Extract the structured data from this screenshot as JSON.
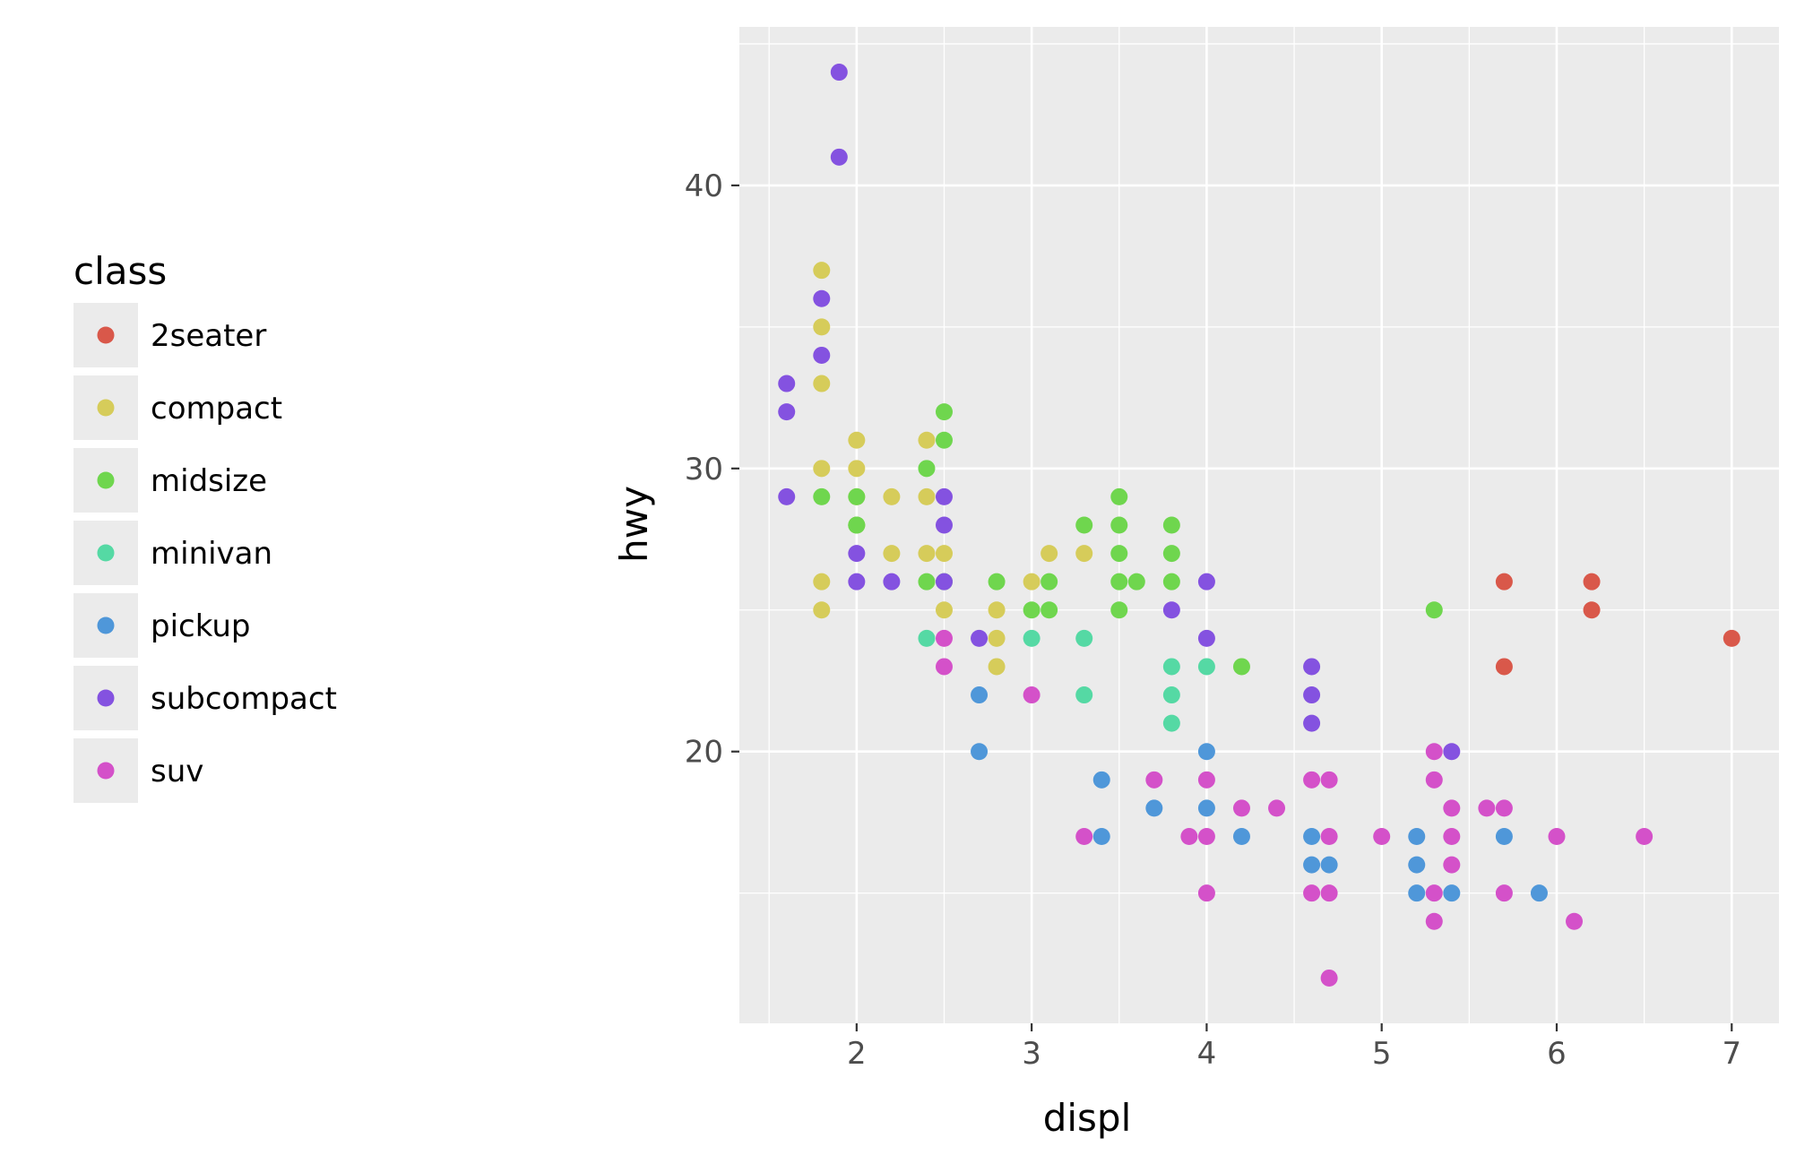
{
  "chart_data": {
    "type": "scatter",
    "title": "",
    "xlabel": "displ",
    "ylabel": "hwy",
    "xlim": [
      1.33,
      7.27
    ],
    "ylim": [
      10.4,
      45.6
    ],
    "x_ticks": [
      2,
      3,
      4,
      5,
      6,
      7
    ],
    "y_ticks": [
      20,
      30,
      40
    ],
    "grid": true,
    "legend": {
      "title": "class",
      "placement": "left",
      "entries": [
        {
          "name": "2seater",
          "color": "#d9584a"
        },
        {
          "name": "compact",
          "color": "#d6cc5a"
        },
        {
          "name": "midsize",
          "color": "#6fd64e"
        },
        {
          "name": "minivan",
          "color": "#55d9a4"
        },
        {
          "name": "pickup",
          "color": "#4f97d9"
        },
        {
          "name": "subcompact",
          "color": "#8452e0"
        },
        {
          "name": "suv",
          "color": "#d451c9"
        }
      ]
    },
    "series": [
      {
        "name": "2seater",
        "points": [
          [
            5.7,
            26
          ],
          [
            5.7,
            23
          ],
          [
            6.2,
            26
          ],
          [
            6.2,
            25
          ],
          [
            7.0,
            24
          ]
        ]
      },
      {
        "name": "compact",
        "points": [
          [
            1.8,
            37
          ],
          [
            1.8,
            35
          ],
          [
            1.8,
            33
          ],
          [
            1.8,
            30
          ],
          [
            1.8,
            26
          ],
          [
            1.8,
            25
          ],
          [
            2.0,
            31
          ],
          [
            2.0,
            30
          ],
          [
            2.0,
            29
          ],
          [
            2.2,
            29
          ],
          [
            2.2,
            27
          ],
          [
            2.4,
            31
          ],
          [
            2.4,
            29
          ],
          [
            2.4,
            27
          ],
          [
            2.5,
            27
          ],
          [
            2.5,
            25
          ],
          [
            2.8,
            25
          ],
          [
            2.8,
            24
          ],
          [
            2.8,
            23
          ],
          [
            3.0,
            26
          ],
          [
            3.1,
            27
          ],
          [
            3.3,
            27
          ],
          [
            2.0,
            28
          ]
        ]
      },
      {
        "name": "midsize",
        "points": [
          [
            1.8,
            29
          ],
          [
            2.0,
            29
          ],
          [
            2.0,
            28
          ],
          [
            2.4,
            30
          ],
          [
            2.4,
            26
          ],
          [
            2.5,
            32
          ],
          [
            2.5,
            31
          ],
          [
            2.5,
            26
          ],
          [
            2.8,
            26
          ],
          [
            3.0,
            25
          ],
          [
            3.1,
            26
          ],
          [
            3.1,
            25
          ],
          [
            3.3,
            28
          ],
          [
            3.5,
            29
          ],
          [
            3.5,
            28
          ],
          [
            3.5,
            27
          ],
          [
            3.5,
            26
          ],
          [
            3.5,
            25
          ],
          [
            3.6,
            26
          ],
          [
            3.8,
            28
          ],
          [
            3.8,
            27
          ],
          [
            3.8,
            26
          ],
          [
            4.2,
            23
          ],
          [
            5.3,
            25
          ],
          [
            2.0,
            28
          ]
        ]
      },
      {
        "name": "minivan",
        "points": [
          [
            2.4,
            24
          ],
          [
            3.0,
            24
          ],
          [
            3.3,
            24
          ],
          [
            3.3,
            22
          ],
          [
            3.8,
            23
          ],
          [
            3.8,
            22
          ],
          [
            3.8,
            21
          ],
          [
            4.0,
            23
          ]
        ]
      },
      {
        "name": "pickup",
        "points": [
          [
            2.7,
            22
          ],
          [
            2.7,
            20
          ],
          [
            3.4,
            19
          ],
          [
            3.4,
            17
          ],
          [
            3.7,
            18
          ],
          [
            4.0,
            20
          ],
          [
            4.0,
            18
          ],
          [
            4.2,
            17
          ],
          [
            4.6,
            17
          ],
          [
            4.6,
            16
          ],
          [
            4.7,
            16
          ],
          [
            5.2,
            17
          ],
          [
            5.2,
            16
          ],
          [
            5.2,
            15
          ],
          [
            5.4,
            15
          ],
          [
            5.7,
            17
          ],
          [
            5.9,
            15
          ]
        ]
      },
      {
        "name": "subcompact",
        "points": [
          [
            1.6,
            33
          ],
          [
            1.6,
            32
          ],
          [
            1.6,
            29
          ],
          [
            1.8,
            36
          ],
          [
            1.8,
            34
          ],
          [
            1.9,
            44
          ],
          [
            1.9,
            41
          ],
          [
            2.0,
            27
          ],
          [
            2.0,
            26
          ],
          [
            2.2,
            26
          ],
          [
            2.5,
            29
          ],
          [
            2.5,
            28
          ],
          [
            2.5,
            26
          ],
          [
            2.7,
            24
          ],
          [
            3.8,
            25
          ],
          [
            4.0,
            26
          ],
          [
            4.0,
            24
          ],
          [
            4.6,
            23
          ],
          [
            4.6,
            22
          ],
          [
            4.6,
            21
          ],
          [
            5.4,
            20
          ]
        ]
      },
      {
        "name": "suv",
        "points": [
          [
            2.5,
            24
          ],
          [
            2.5,
            23
          ],
          [
            3.0,
            22
          ],
          [
            3.3,
            17
          ],
          [
            3.7,
            19
          ],
          [
            3.9,
            17
          ],
          [
            4.0,
            19
          ],
          [
            4.0,
            17
          ],
          [
            4.0,
            15
          ],
          [
            4.2,
            18
          ],
          [
            4.4,
            18
          ],
          [
            4.6,
            19
          ],
          [
            4.6,
            15
          ],
          [
            4.7,
            19
          ],
          [
            4.7,
            17
          ],
          [
            4.7,
            15
          ],
          [
            4.7,
            12
          ],
          [
            5.0,
            17
          ],
          [
            5.3,
            20
          ],
          [
            5.3,
            19
          ],
          [
            5.3,
            15
          ],
          [
            5.3,
            14
          ],
          [
            5.4,
            18
          ],
          [
            5.4,
            17
          ],
          [
            5.4,
            16
          ],
          [
            5.6,
            18
          ],
          [
            5.7,
            18
          ],
          [
            5.7,
            15
          ],
          [
            6.0,
            17
          ],
          [
            6.1,
            14
          ],
          [
            6.5,
            17
          ]
        ]
      }
    ]
  }
}
